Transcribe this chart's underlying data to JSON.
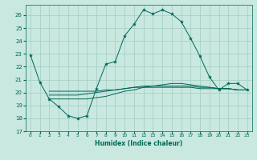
{
  "xlabel": "Humidex (Indice chaleur)",
  "bg_color": "#c8e8e0",
  "grid_color": "#a8d0c8",
  "line_color": "#006858",
  "xlim": [
    -0.5,
    23.5
  ],
  "ylim": [
    17,
    26.8
  ],
  "yticks": [
    17,
    18,
    19,
    20,
    21,
    22,
    23,
    24,
    25,
    26
  ],
  "xticks": [
    0,
    1,
    2,
    3,
    4,
    5,
    6,
    7,
    8,
    9,
    10,
    11,
    12,
    13,
    14,
    15,
    16,
    17,
    18,
    19,
    20,
    21,
    22,
    23
  ],
  "line1_x": [
    0,
    1,
    2,
    3,
    4,
    5,
    6,
    7,
    8,
    9,
    10,
    11,
    12,
    13,
    14,
    15,
    16,
    17,
    18,
    19,
    20,
    21,
    22,
    23
  ],
  "line1_y": [
    22.9,
    20.8,
    19.5,
    18.9,
    18.2,
    18.0,
    18.2,
    20.3,
    22.2,
    22.4,
    24.4,
    25.3,
    26.4,
    26.1,
    26.4,
    26.1,
    25.5,
    24.2,
    22.8,
    21.2,
    20.2,
    20.7,
    20.7,
    20.2
  ],
  "line2_x": [
    2,
    3,
    4,
    5,
    6,
    7,
    8,
    9,
    10,
    11,
    12,
    13,
    14,
    15,
    16,
    17,
    18,
    19,
    20,
    21,
    22,
    23
  ],
  "line2_y": [
    19.5,
    19.5,
    19.5,
    19.5,
    19.5,
    19.6,
    19.7,
    19.9,
    20.1,
    20.2,
    20.4,
    20.5,
    20.6,
    20.7,
    20.7,
    20.6,
    20.5,
    20.4,
    20.3,
    20.3,
    20.2,
    20.2
  ],
  "line3_x": [
    2,
    3,
    4,
    5,
    6,
    7,
    8,
    9,
    10,
    11,
    12,
    13,
    14,
    15,
    16,
    17,
    18,
    19,
    20,
    21,
    22,
    23
  ],
  "line3_y": [
    19.8,
    19.8,
    19.8,
    19.8,
    19.9,
    20.0,
    20.1,
    20.2,
    20.3,
    20.4,
    20.5,
    20.5,
    20.5,
    20.5,
    20.5,
    20.5,
    20.4,
    20.4,
    20.3,
    20.3,
    20.2,
    20.2
  ],
  "line4_x": [
    2,
    3,
    4,
    5,
    6,
    7,
    8,
    9,
    10,
    11,
    12,
    13,
    14,
    15,
    16,
    17,
    18,
    19,
    20,
    21,
    22,
    23
  ],
  "line4_y": [
    20.1,
    20.1,
    20.1,
    20.1,
    20.1,
    20.1,
    20.2,
    20.2,
    20.3,
    20.4,
    20.4,
    20.4,
    20.4,
    20.4,
    20.4,
    20.4,
    20.3,
    20.3,
    20.3,
    20.3,
    20.2,
    20.2
  ]
}
